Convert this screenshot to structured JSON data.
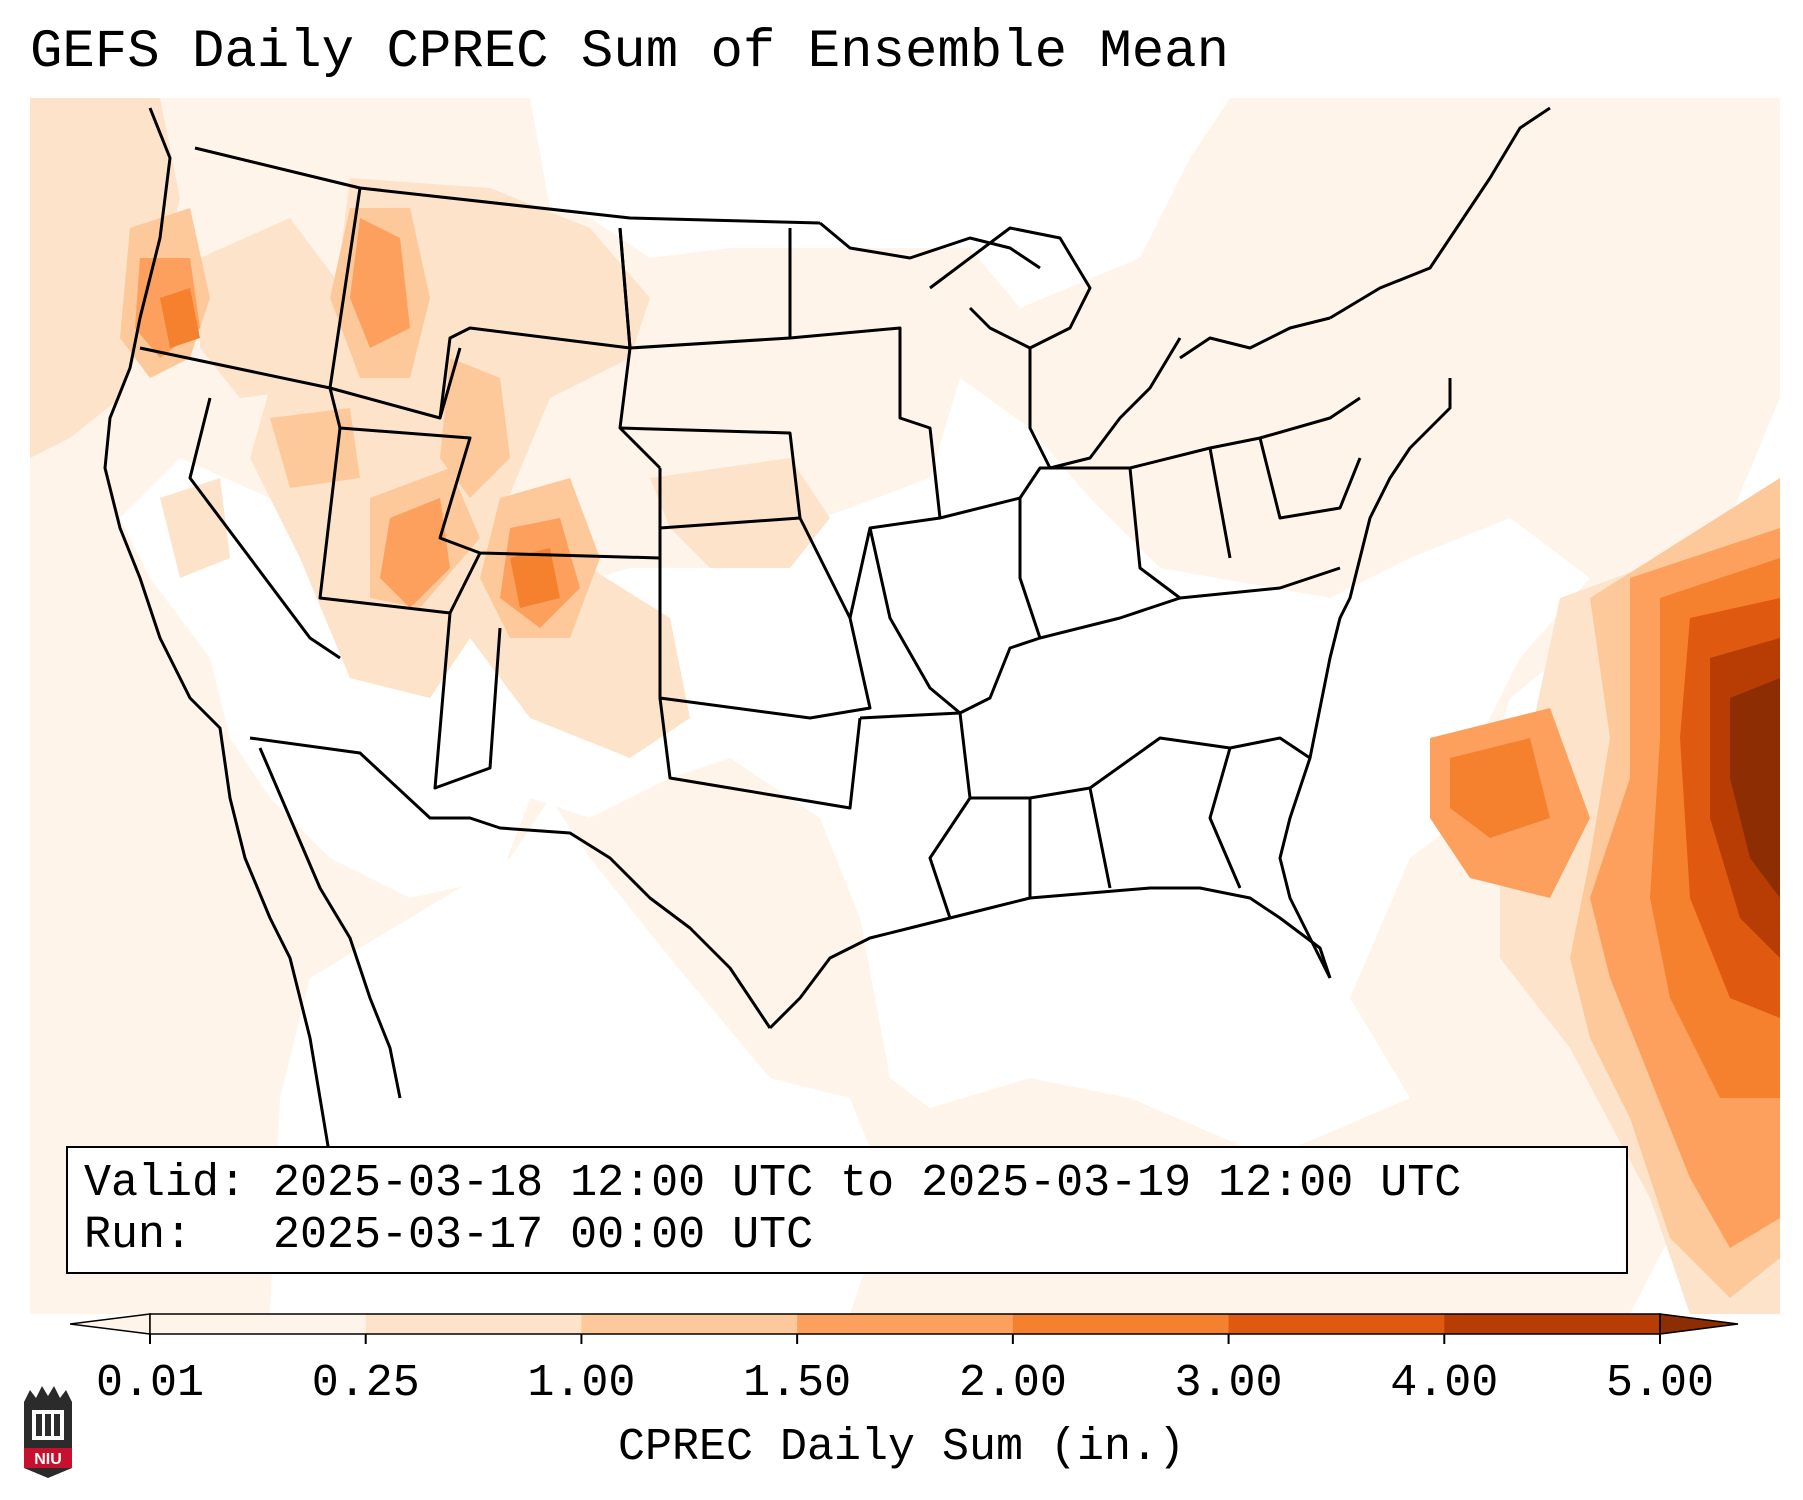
{
  "title": "GEFS Daily CPREC Sum of Ensemble Mean",
  "info": {
    "valid_line": "Valid: 2025-03-18 12:00 UTC to 2025-03-19 12:00 UTC",
    "run_line": "Run:   2025-03-17 00:00 UTC"
  },
  "colorbar": {
    "label": "CPREC Daily Sum (in.)",
    "ticks": [
      "0.01",
      "0.25",
      "1.00",
      "1.50",
      "2.00",
      "3.00",
      "4.00",
      "5.00"
    ],
    "colors": [
      "#fef4ea",
      "#fde3c9",
      "#fdc89a",
      "#fda05e",
      "#f5802e",
      "#e05910",
      "#b83d04",
      "#8c2d04"
    ],
    "extend": "both"
  },
  "logo": {
    "text": "NIU",
    "color": "#c8102e"
  }
}
